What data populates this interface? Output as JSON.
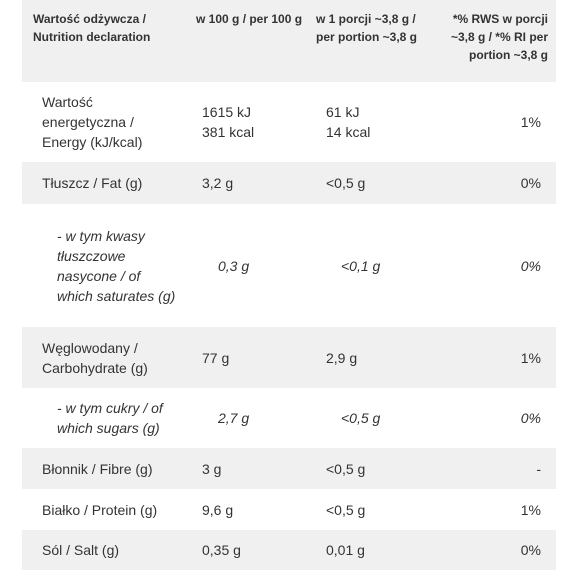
{
  "table": {
    "header": [
      "Wartość odżywcza / Nutrition declaration",
      "w 100 g / per 100 g",
      "w 1 porcji ~3,8 g / per portion ~3,8 g",
      "*% RWS w porcji ~3,8 g / *% RI per portion ~3,8 g"
    ],
    "rows": [
      [
        "Wartość energetyczna / Energy (kJ/kcal)",
        [
          "1615 kJ",
          "381 kcal"
        ],
        [
          "61 kJ",
          "14 kcal"
        ],
        "1%"
      ],
      [
        "Tłuszcz / Fat (g)",
        "3,2 g",
        "<0,5 g",
        "0%"
      ],
      [
        "- w tym kwasy tłuszczowe nasycone / of which saturates (g)",
        "0,3 g",
        "<0,1 g",
        "0%"
      ],
      [
        "Węglowodany / Carbohydrate (g)",
        "77 g",
        "2,9 g",
        "1%"
      ],
      [
        "- w tym cukry / of which sugars (g)",
        "2,7 g",
        "<0,5 g",
        "0%"
      ],
      [
        "Błonnik / Fibre (g)",
        "3 g",
        "<0,5 g",
        "-"
      ],
      [
        "Białko / Protein (g)",
        "9,6 g",
        "<0,5 g",
        "1%"
      ],
      [
        "Sól / Salt (g)",
        "0,35 g",
        "0,01 g",
        "0%"
      ]
    ]
  }
}
